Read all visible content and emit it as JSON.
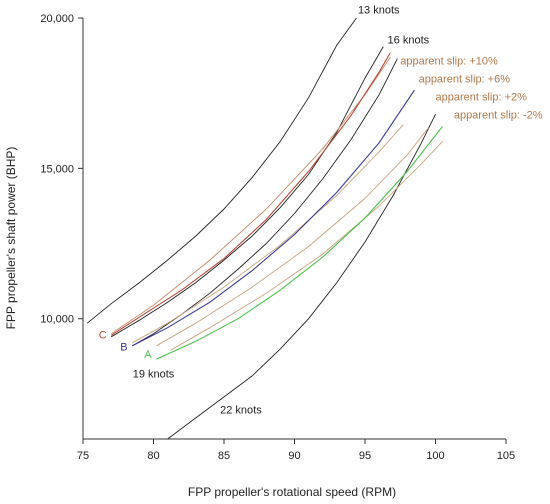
{
  "chart_data": {
    "type": "line",
    "xlabel": "FPP propeller's rotational speed (RPM)",
    "ylabel": "FPP propeller's shaft power (BHP)",
    "xlim": [
      75,
      105
    ],
    "ylim": [
      6000,
      20000
    ],
    "x_ticks": [
      75,
      80,
      85,
      90,
      95,
      100,
      105
    ],
    "y_ticks": [
      {
        "value": 10000,
        "label": "10,000"
      },
      {
        "value": 15000,
        "label": "15,000"
      },
      {
        "value": 20000,
        "label": "20,000"
      }
    ],
    "grid": false,
    "series": [
      {
        "name": "13 knots",
        "kind": "speed",
        "color": "#222222",
        "x": [
          75.3,
          77.0,
          79.0,
          81.0,
          83.0,
          85.0,
          87.0,
          89.0,
          91.0,
          93.0,
          94.4
        ],
        "y": [
          9850,
          10500,
          11200,
          11950,
          12750,
          13650,
          14700,
          15900,
          17350,
          19100,
          20000
        ]
      },
      {
        "name": "16 knots",
        "kind": "speed",
        "color": "#222222",
        "x": [
          77.0,
          79.0,
          81.0,
          83.0,
          85.0,
          87.0,
          89.0,
          91.0,
          93.0,
          95.0,
          96.3
        ],
        "y": [
          9400,
          9950,
          10550,
          11200,
          11950,
          12750,
          13700,
          14800,
          16200,
          18000,
          19050
        ]
      },
      {
        "name": "19 knots",
        "kind": "speed",
        "color": "#222222",
        "x": [
          78.5,
          80.0,
          82.0,
          84.0,
          86.0,
          88.0,
          90.0,
          92.0,
          94.0,
          96.0,
          97.3
        ],
        "y": [
          9100,
          9500,
          10150,
          10850,
          11650,
          12500,
          13500,
          14650,
          15950,
          17450,
          18650
        ]
      },
      {
        "name": "22 knots",
        "kind": "speed",
        "color": "#222222",
        "x": [
          81.0,
          83.0,
          85.0,
          87.0,
          89.0,
          91.0,
          93.0,
          95.0,
          97.0,
          99.0,
          100.0
        ],
        "y": [
          6000,
          6700,
          7400,
          8100,
          9000,
          10000,
          11200,
          12550,
          14100,
          15850,
          16800
        ]
      },
      {
        "name": "apparent slip: +10%",
        "kind": "slip",
        "color": "#c8896a",
        "x": [
          77.0,
          80.0,
          84.0,
          88.0,
          92.0,
          95.0,
          96.8
        ],
        "y": [
          9500,
          10450,
          11950,
          13650,
          15650,
          17450,
          18700
        ]
      },
      {
        "name": "apparent slip: +6%",
        "kind": "slip",
        "color": "#c9a480",
        "x": [
          78.5,
          81.0,
          85.0,
          89.0,
          93.0,
          96.0,
          97.7
        ],
        "y": [
          9200,
          9850,
          11050,
          12450,
          14100,
          15550,
          16450
        ]
      },
      {
        "name": "apparent slip: +2%",
        "kind": "slip",
        "color": "#c9a480",
        "x": [
          80.2,
          83.0,
          87.0,
          91.0,
          95.0,
          98.0,
          99.5
        ],
        "y": [
          9100,
          9850,
          11050,
          12400,
          14000,
          15450,
          16350
        ]
      },
      {
        "name": "apparent slip: -2%",
        "kind": "slip",
        "color": "#c9a480",
        "x": [
          81.2,
          84.0,
          88.0,
          92.0,
          96.0,
          99.0,
          100.5
        ],
        "y": [
          8950,
          9700,
          10850,
          12150,
          13750,
          15150,
          15900
        ]
      },
      {
        "name": "C",
        "kind": "operating",
        "color": "#b84a3a",
        "x": [
          77.0,
          79.0,
          82.0,
          85.0,
          88.0,
          91.0,
          94.0,
          96.0,
          96.8
        ],
        "y": [
          9450,
          10050,
          10950,
          12000,
          13300,
          14900,
          16750,
          18200,
          18850
        ]
      },
      {
        "name": "B",
        "kind": "operating",
        "color": "#3a3a9a",
        "x": [
          78.5,
          81.0,
          84.0,
          87.0,
          90.0,
          93.0,
          96.0,
          98.5
        ],
        "y": [
          9100,
          9700,
          10550,
          11600,
          12800,
          14200,
          15850,
          17600
        ]
      },
      {
        "name": "A",
        "kind": "operating",
        "color": "#4cc24c",
        "x": [
          80.2,
          83.0,
          86.0,
          89.0,
          92.0,
          95.0,
          98.0,
          100.5
        ],
        "y": [
          8650,
          9250,
          10000,
          10950,
          12050,
          13350,
          14900,
          16400
        ]
      }
    ],
    "annotations": [
      {
        "text": "13 knots",
        "color": "#222222",
        "x": 94.5,
        "y": 20150,
        "anchor": "start"
      },
      {
        "text": "16 knots",
        "color": "#222222",
        "x": 96.6,
        "y": 19150,
        "anchor": "start"
      },
      {
        "text": "apparent slip: +10%",
        "color": "#b0784a",
        "x": 97.5,
        "y": 18450,
        "anchor": "start"
      },
      {
        "text": "apparent slip: +6%",
        "color": "#b0784a",
        "x": 98.8,
        "y": 17850,
        "anchor": "start"
      },
      {
        "text": "apparent slip: +2%",
        "color": "#b0784a",
        "x": 100.0,
        "y": 17250,
        "anchor": "start"
      },
      {
        "text": "apparent slip: -2%",
        "color": "#b0784a",
        "x": 101.3,
        "y": 16650,
        "anchor": "start"
      },
      {
        "text": "C",
        "color": "#b84a3a",
        "x": 76.4,
        "y": 9350,
        "anchor": "middle"
      },
      {
        "text": "B",
        "color": "#3a3a9a",
        "x": 77.9,
        "y": 8950,
        "anchor": "middle"
      },
      {
        "text": "A",
        "color": "#4cc24c",
        "x": 79.6,
        "y": 8700,
        "anchor": "middle"
      },
      {
        "text": "19 knots",
        "color": "#222222",
        "x": 80.0,
        "y": 8050,
        "anchor": "middle"
      },
      {
        "text": "22 knots",
        "color": "#222222",
        "x": 86.2,
        "y": 6850,
        "anchor": "middle"
      }
    ]
  }
}
